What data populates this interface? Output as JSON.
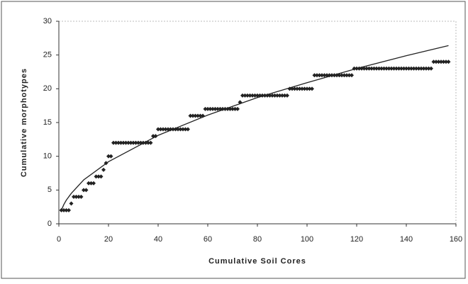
{
  "chart_data": {
    "type": "scatter",
    "xlabel": "Cumulative Soil Cores",
    "ylabel": "Cumulative morphotypes",
    "xlim": [
      0,
      160
    ],
    "xticks": [
      0,
      20,
      40,
      60,
      80,
      100,
      120,
      140,
      160
    ],
    "ylim": [
      0,
      30
    ],
    "yticks": [
      0,
      5,
      10,
      15,
      20,
      25,
      30
    ],
    "color": "#222222",
    "x": [
      1,
      2,
      3,
      4,
      5,
      6,
      7,
      8,
      9,
      10,
      11,
      12,
      13,
      14,
      15,
      16,
      17,
      18,
      19,
      20,
      21,
      22,
      23,
      24,
      25,
      26,
      27,
      28,
      29,
      30,
      31,
      32,
      33,
      34,
      35,
      36,
      37,
      38,
      39,
      40,
      41,
      42,
      43,
      44,
      45,
      46,
      47,
      48,
      49,
      50,
      51,
      52,
      53,
      54,
      55,
      56,
      57,
      58,
      59,
      60,
      61,
      62,
      63,
      64,
      65,
      66,
      67,
      68,
      69,
      70,
      71,
      72,
      73,
      74,
      75,
      76,
      77,
      78,
      79,
      80,
      81,
      82,
      83,
      84,
      85,
      86,
      87,
      88,
      89,
      90,
      91,
      92,
      93,
      94,
      95,
      96,
      97,
      98,
      99,
      100,
      101,
      102,
      103,
      104,
      105,
      106,
      107,
      108,
      109,
      110,
      111,
      112,
      113,
      114,
      115,
      116,
      117,
      118,
      119,
      120,
      121,
      122,
      123,
      124,
      125,
      126,
      127,
      128,
      129,
      130,
      131,
      132,
      133,
      134,
      135,
      136,
      137,
      138,
      139,
      140,
      141,
      142,
      143,
      144,
      145,
      146,
      147,
      148,
      149,
      150,
      151,
      152,
      153,
      154,
      155,
      156,
      157
    ],
    "values": [
      2,
      2,
      2,
      2,
      3,
      4,
      4,
      4,
      4,
      5,
      5,
      6,
      6,
      6,
      7,
      7,
      7,
      8,
      9,
      10,
      10,
      12,
      12,
      12,
      12,
      12,
      12,
      12,
      12,
      12,
      12,
      12,
      12,
      12,
      12,
      12,
      12,
      13,
      13,
      14,
      14,
      14,
      14,
      14,
      14,
      14,
      14,
      14,
      14,
      14,
      14,
      14,
      16,
      16,
      16,
      16,
      16,
      16,
      17,
      17,
      17,
      17,
      17,
      17,
      17,
      17,
      17,
      17,
      17,
      17,
      17,
      17,
      18,
      19,
      19,
      19,
      19,
      19,
      19,
      19,
      19,
      19,
      19,
      19,
      19,
      19,
      19,
      19,
      19,
      19,
      19,
      19,
      20,
      20,
      20,
      20,
      20,
      20,
      20,
      20,
      20,
      20,
      22,
      22,
      22,
      22,
      22,
      22,
      22,
      22,
      22,
      22,
      22,
      22,
      22,
      22,
      22,
      22,
      23,
      23,
      23,
      23,
      23,
      23,
      23,
      23,
      23,
      23,
      23,
      23,
      23,
      23,
      23,
      23,
      23,
      23,
      23,
      23,
      23,
      23,
      23,
      23,
      23,
      23,
      23,
      23,
      23,
      23,
      23,
      23,
      24,
      24,
      24,
      24,
      24,
      24,
      24
    ],
    "trendline": {
      "x": [
        1,
        2,
        3,
        5,
        10,
        20,
        40,
        60,
        80,
        100,
        120,
        140,
        157
      ],
      "values": [
        2.0,
        2.85,
        3.5,
        4.5,
        6.5,
        9.2,
        13.1,
        16.1,
        18.7,
        20.9,
        23.0,
        24.9,
        26.4
      ],
      "color": "#222222"
    }
  }
}
